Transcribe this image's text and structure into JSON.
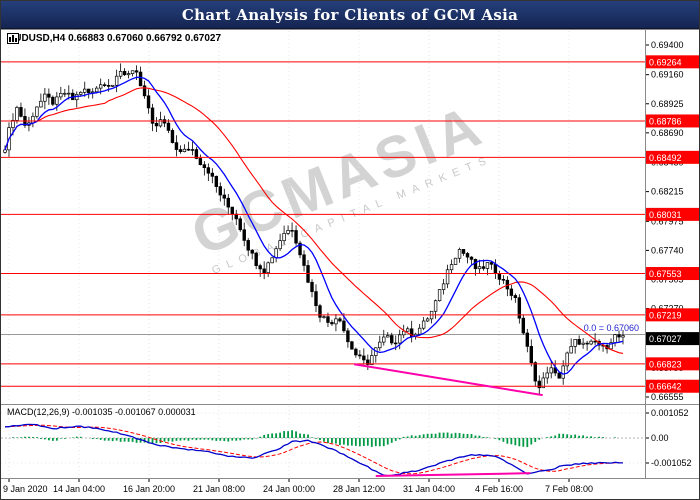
{
  "window": {
    "title": "Chart Analysis for Clients of GCM Asia"
  },
  "chart": {
    "symbol_info": "AUDUSD,H4 0.66883 0.67060 0.66792 0.67027",
    "macd_label": "MACD(12,26,9) -0.001035 -0.001067 0.000031",
    "annotation": "0.0 = 0.67060",
    "watermark_main": "GCMASIA",
    "watermark_sub": "GLOBAL CAPITAL MARKETS"
  },
  "chart_data": {
    "type": "candlestick",
    "symbol": "AUDUSD",
    "timeframe": "H4",
    "ohlc_display": {
      "open": 0.66883,
      "high": 0.6706,
      "low": 0.66792,
      "close": 0.67027
    },
    "price_axis": {
      "min": 0.66555,
      "max": 0.694,
      "ticks": [
        "0.69400",
        "0.69160",
        "0.68925",
        "0.68690",
        "0.68450",
        "0.68215",
        "0.67975",
        "0.67740",
        "0.67505",
        "0.67270",
        "0.67030",
        "0.66790",
        "0.66555"
      ]
    },
    "level_lines": [
      "0.69264",
      "0.68786",
      "0.68492",
      "0.68031",
      "0.67553",
      "0.67219",
      "0.66823",
      "0.66642"
    ],
    "current_price": "0.67027",
    "fibo_line": {
      "price": 0.6706,
      "label": "0.0 = 0.67060"
    },
    "time_labels": [
      "9 Jan 2020",
      "14 Jan 04:00",
      "16 Jan 20:00",
      "21 Jan 08:00",
      "24 Jan 00:00",
      "28 Jan 12:00",
      "31 Jan 04:00",
      "4 Feb 16:00",
      "7 Feb 08:00"
    ],
    "time_x": [
      8,
      78,
      148,
      218,
      288,
      358,
      428,
      498,
      568
    ],
    "price_path": [
      [
        0.0,
        0.6858
      ],
      [
        0.01,
        0.6878
      ],
      [
        0.02,
        0.689
      ],
      [
        0.035,
        0.6872
      ],
      [
        0.05,
        0.689
      ],
      [
        0.065,
        0.6898
      ],
      [
        0.08,
        0.6893
      ],
      [
        0.095,
        0.6902
      ],
      [
        0.11,
        0.6896
      ],
      [
        0.125,
        0.6904
      ],
      [
        0.14,
        0.69
      ],
      [
        0.155,
        0.691
      ],
      [
        0.17,
        0.6906
      ],
      [
        0.185,
        0.6921
      ],
      [
        0.195,
        0.6912
      ],
      [
        0.21,
        0.6923
      ],
      [
        0.225,
        0.69
      ],
      [
        0.24,
        0.6872
      ],
      [
        0.255,
        0.688
      ],
      [
        0.27,
        0.6862
      ],
      [
        0.285,
        0.6852
      ],
      [
        0.3,
        0.6858
      ],
      [
        0.315,
        0.6846
      ],
      [
        0.33,
        0.6838
      ],
      [
        0.345,
        0.6822
      ],
      [
        0.36,
        0.681
      ],
      [
        0.375,
        0.68
      ],
      [
        0.39,
        0.678
      ],
      [
        0.405,
        0.6765
      ],
      [
        0.42,
        0.6758
      ],
      [
        0.435,
        0.6772
      ],
      [
        0.45,
        0.6788
      ],
      [
        0.465,
        0.6792
      ],
      [
        0.48,
        0.6768
      ],
      [
        0.495,
        0.6742
      ],
      [
        0.51,
        0.6722
      ],
      [
        0.525,
        0.6715
      ],
      [
        0.54,
        0.6722
      ],
      [
        0.555,
        0.67
      ],
      [
        0.57,
        0.6688
      ],
      [
        0.585,
        0.6682
      ],
      [
        0.6,
        0.6694
      ],
      [
        0.615,
        0.6704
      ],
      [
        0.63,
        0.67
      ],
      [
        0.645,
        0.671
      ],
      [
        0.66,
        0.6706
      ],
      [
        0.675,
        0.6713
      ],
      [
        0.69,
        0.6724
      ],
      [
        0.705,
        0.6742
      ],
      [
        0.72,
        0.6763
      ],
      [
        0.735,
        0.6775
      ],
      [
        0.75,
        0.6768
      ],
      [
        0.765,
        0.6757
      ],
      [
        0.78,
        0.6763
      ],
      [
        0.795,
        0.6757
      ],
      [
        0.81,
        0.6746
      ],
      [
        0.825,
        0.6735
      ],
      [
        0.84,
        0.6705
      ],
      [
        0.855,
        0.6675
      ],
      [
        0.865,
        0.6662
      ],
      [
        0.88,
        0.668
      ],
      [
        0.895,
        0.667
      ],
      [
        0.91,
        0.669
      ],
      [
        0.925,
        0.6702
      ],
      [
        0.94,
        0.6696
      ],
      [
        0.955,
        0.67
      ],
      [
        0.97,
        0.6694
      ],
      [
        0.985,
        0.6705
      ],
      [
        1.0,
        0.6703
      ]
    ],
    "trendline_price": {
      "t1": 0.565,
      "p1": 0.6682,
      "t2": 0.87,
      "p2": 0.6657
    },
    "macd": {
      "label": "MACD(12,26,9)",
      "values": [
        -0.001035,
        -0.001067,
        3.1e-05
      ],
      "scale_ticks": [
        "0.001052",
        "0.00",
        "-0.001052"
      ],
      "path": [
        [
          0.0,
          0.00045
        ],
        [
          0.04,
          0.0006
        ],
        [
          0.08,
          0.0004
        ],
        [
          0.12,
          0.0005
        ],
        [
          0.16,
          0.00035
        ],
        [
          0.2,
          0.0001
        ],
        [
          0.24,
          -0.00025
        ],
        [
          0.28,
          -0.00045
        ],
        [
          0.32,
          -0.00055
        ],
        [
          0.36,
          -0.00075
        ],
        [
          0.4,
          -0.00085
        ],
        [
          0.44,
          -0.0005
        ],
        [
          0.465,
          -0.00015
        ],
        [
          0.49,
          -0.0001
        ],
        [
          0.51,
          -0.00025
        ],
        [
          0.54,
          -0.0006
        ],
        [
          0.57,
          -0.001
        ],
        [
          0.6,
          -0.0014
        ],
        [
          0.615,
          -0.00158
        ],
        [
          0.64,
          -0.0015
        ],
        [
          0.67,
          -0.00135
        ],
        [
          0.7,
          -0.0011
        ],
        [
          0.73,
          -0.00085
        ],
        [
          0.76,
          -0.0007
        ],
        [
          0.79,
          -0.00075
        ],
        [
          0.82,
          -0.0011
        ],
        [
          0.845,
          -0.0015
        ],
        [
          0.87,
          -0.0014
        ],
        [
          0.9,
          -0.0012
        ],
        [
          0.93,
          -0.00108
        ],
        [
          0.96,
          -0.00104
        ],
        [
          1.0,
          -0.001035
        ]
      ],
      "trendline": {
        "t1": 0.6,
        "v1": -0.0016,
        "t2": 0.85,
        "v2": -0.00148
      }
    },
    "colors": {
      "up": "#ffffff",
      "down": "#000000",
      "wick": "#000000",
      "ma_fast": "#0000ff",
      "ma_slow": "#ff0000",
      "level": "#ff0000",
      "level_badge": "#ff0000",
      "current_badge": "#000000",
      "fibo_line": "#9a9a9a",
      "annotation": "#2222cc",
      "macd_line": "#0000cc",
      "signal_line": "#ff0000",
      "histogram": "#009944",
      "trend": "#ff00aa",
      "grid": "#e3e3e3"
    }
  }
}
